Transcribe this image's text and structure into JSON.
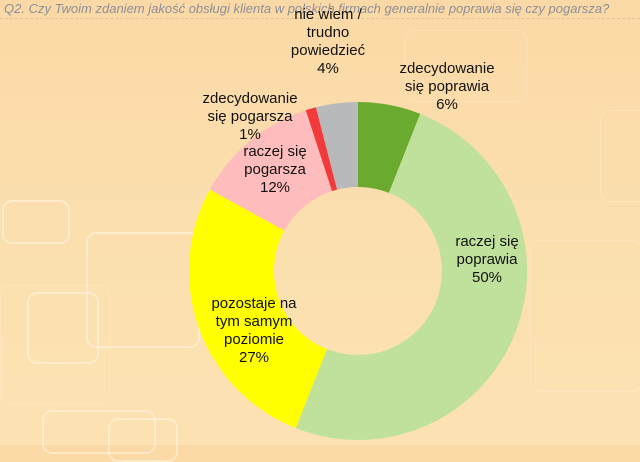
{
  "title": "Q2. Czy Twoim zdaniem jakość obsługi klienta w polskich firmach generalnie poprawia się czy pogarsza?",
  "chart_data": {
    "type": "pie",
    "subtype": "donut",
    "title": "Q2. Czy Twoim zdaniem jakość obsługi klienta w polskich firmach generalnie poprawia się czy pogarsza?",
    "categories": [
      "zdecydowanie się poprawia",
      "raczej się poprawia",
      "pozostaje na tym samym poziomie",
      "raczej się pogarsza",
      "zdecydowanie się pogarsza",
      "nie wiem / trudno powiedzieć"
    ],
    "values": [
      6,
      50,
      27,
      12,
      1,
      4
    ],
    "unit": "%",
    "colors": [
      "#6aaa2e",
      "#bfe19c",
      "#ffff00",
      "#ffbcbc",
      "#f23a3a",
      "#b8b9ba"
    ],
    "start_angle_deg": 0,
    "direction": "clockwise",
    "legend": "none (data labels on chart)"
  },
  "labels": [
    {
      "lines": [
        "zdecydowanie",
        "się poprawia"
      ],
      "pct": "6%"
    },
    {
      "lines": [
        "raczej się",
        "poprawia"
      ],
      "pct": "50%"
    },
    {
      "lines": [
        "pozostaje na",
        "tym samym",
        "poziomie"
      ],
      "pct": "27%"
    },
    {
      "lines": [
        "raczej się",
        "pogarsza"
      ],
      "pct": "12%"
    },
    {
      "lines": [
        "zdecydowanie",
        "się pogarsza"
      ],
      "pct": "1%"
    },
    {
      "lines": [
        "nie wiem /",
        "trudno",
        "powiedzieć"
      ],
      "pct": "4%"
    }
  ]
}
